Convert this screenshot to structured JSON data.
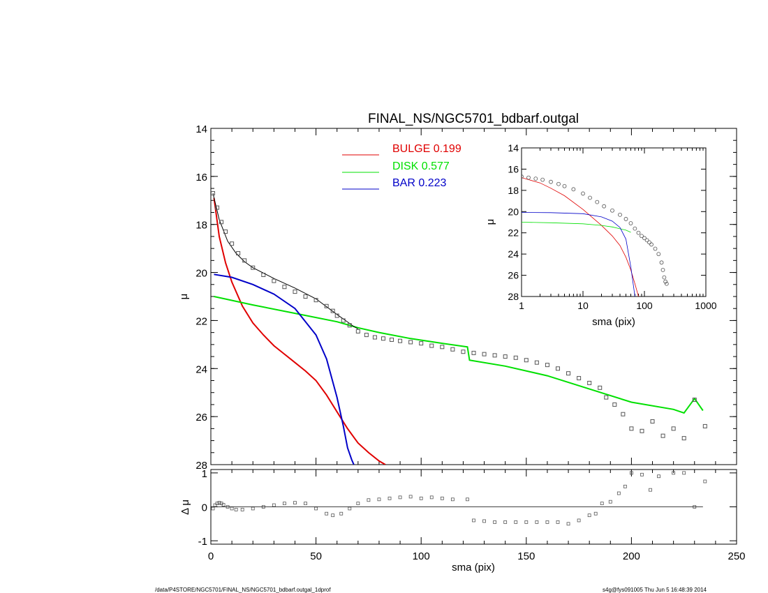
{
  "chart_data": [
    {
      "type": "scatter",
      "title": "FINAL_NS/NGC5701_bdbarf.outgal",
      "xlabel": "",
      "ylabel": "μ",
      "xlim": [
        0,
        250
      ],
      "ylim": [
        28,
        14
      ],
      "y_inverted": true,
      "yticks": [
        "14",
        "16",
        "18",
        "20",
        "22",
        "24",
        "26",
        "28"
      ],
      "legend": {
        "placement": "top-center",
        "entries": [
          {
            "name": "BULGE",
            "value": "0.199",
            "color": "#e00000"
          },
          {
            "name": "DISK",
            "value": "0.577",
            "color": "#00e000"
          },
          {
            "name": "BAR",
            "value": "0.223",
            "color": "#0000c8"
          }
        ]
      },
      "series": [
        {
          "name": "BULGE",
          "kind": "line",
          "color": "#e00000",
          "x": [
            1.5,
            4,
            7,
            10,
            15,
            20,
            25,
            30,
            35,
            40,
            45,
            50,
            55,
            60,
            65,
            70,
            75,
            80,
            83
          ],
          "y": [
            16.9,
            18.5,
            19.6,
            20.4,
            21.4,
            22.1,
            22.6,
            23.05,
            23.4,
            23.75,
            24.1,
            24.5,
            25.1,
            25.8,
            26.5,
            27.1,
            27.5,
            27.85,
            28.0
          ]
        },
        {
          "name": "DISK",
          "kind": "line",
          "color": "#00e000",
          "x": [
            1.5,
            20,
            40,
            60,
            70,
            80,
            95,
            110,
            122,
            123,
            140,
            160,
            180,
            200,
            220,
            225,
            230,
            234
          ],
          "y": [
            21.0,
            21.35,
            21.7,
            22.05,
            22.3,
            22.5,
            22.75,
            22.95,
            23.1,
            23.65,
            23.9,
            24.3,
            24.85,
            25.4,
            25.7,
            25.85,
            25.25,
            25.75
          ]
        },
        {
          "name": "BAR",
          "kind": "line",
          "color": "#0000c8",
          "x": [
            1.5,
            10,
            20,
            30,
            40,
            50,
            55,
            60,
            63,
            65,
            67,
            68
          ],
          "y": [
            20.08,
            20.2,
            20.5,
            20.9,
            21.5,
            22.6,
            23.6,
            25.2,
            26.4,
            27.3,
            27.8,
            28.0
          ]
        },
        {
          "name": "model-total",
          "kind": "line",
          "color": "#000000",
          "x": [
            1,
            4,
            8,
            12,
            16,
            20,
            30,
            40,
            50,
            60,
            64,
            68,
            70
          ],
          "y": [
            16.7,
            17.8,
            18.7,
            19.2,
            19.55,
            19.8,
            20.25,
            20.65,
            21.1,
            21.75,
            22.0,
            22.25,
            22.35
          ]
        },
        {
          "name": "data",
          "kind": "scatter",
          "color": "#000000",
          "x": [
            1,
            3,
            5,
            7,
            10,
            13,
            16,
            20,
            25,
            30,
            35,
            40,
            45,
            50,
            55,
            58,
            60,
            63,
            66,
            70,
            74,
            78,
            82,
            86,
            90,
            95,
            100,
            105,
            110,
            115,
            120,
            125,
            130,
            135,
            140,
            145,
            150,
            155,
            160,
            165,
            170,
            175,
            180,
            185,
            188,
            192,
            196,
            200,
            205,
            210,
            215,
            220,
            225,
            230,
            235
          ],
          "y": [
            16.7,
            17.3,
            17.9,
            18.3,
            18.8,
            19.2,
            19.5,
            19.8,
            20.1,
            20.35,
            20.6,
            20.8,
            21.0,
            21.15,
            21.4,
            21.6,
            21.8,
            22.0,
            22.2,
            22.45,
            22.6,
            22.7,
            22.75,
            22.8,
            22.85,
            22.9,
            22.95,
            23.05,
            23.1,
            23.2,
            23.3,
            23.35,
            23.4,
            23.45,
            23.5,
            23.55,
            23.65,
            23.75,
            23.85,
            24.0,
            24.2,
            24.4,
            24.6,
            24.8,
            25.2,
            25.5,
            25.9,
            26.5,
            26.6,
            26.2,
            26.8,
            26.5,
            26.9,
            25.3,
            26.4
          ]
        }
      ]
    },
    {
      "type": "scatter",
      "xlabel": "sma (pix)",
      "ylabel": "Δ μ",
      "xlim": [
        0,
        250
      ],
      "ylim": [
        -1.1,
        1.1
      ],
      "xticks": [
        "0",
        "50",
        "100",
        "150",
        "200",
        "250"
      ],
      "yticks": [
        "1",
        "0",
        "-1"
      ],
      "series": [
        {
          "name": "residual",
          "kind": "scatter",
          "color": "#000000",
          "x": [
            1,
            2,
            3,
            4,
            5,
            6,
            8,
            10,
            12,
            15,
            20,
            25,
            30,
            35,
            40,
            45,
            50,
            55,
            58,
            62,
            66,
            70,
            75,
            80,
            85,
            90,
            95,
            100,
            105,
            110,
            115,
            122,
            125,
            130,
            135,
            140,
            145,
            150,
            155,
            160,
            165,
            170,
            175,
            180,
            183,
            186,
            190,
            194,
            197,
            200,
            205,
            209,
            213,
            220,
            225,
            230,
            235
          ],
          "y": [
            -0.05,
            0.05,
            0.1,
            0.12,
            0.1,
            0.06,
            0.0,
            -0.05,
            -0.08,
            -0.08,
            -0.05,
            0.0,
            0.05,
            0.1,
            0.12,
            0.1,
            -0.05,
            -0.2,
            -0.25,
            -0.2,
            -0.05,
            0.1,
            0.2,
            0.22,
            0.25,
            0.28,
            0.3,
            0.25,
            0.28,
            0.25,
            0.22,
            0.22,
            -0.4,
            -0.42,
            -0.45,
            -0.45,
            -0.45,
            -0.45,
            -0.45,
            -0.45,
            -0.45,
            -0.5,
            -0.4,
            -0.25,
            -0.2,
            0.1,
            0.15,
            0.4,
            0.6,
            1.0,
            0.95,
            0.5,
            0.9,
            1.0,
            1.0,
            0.0,
            0.75
          ]
        },
        {
          "name": "zero-line",
          "kind": "line",
          "color": "#000000",
          "x": [
            0,
            234
          ],
          "y": [
            0,
            0
          ]
        }
      ]
    },
    {
      "type": "scatter",
      "inset": true,
      "xlabel": "sma (pix)",
      "ylabel": "μ",
      "xscale": "log",
      "xlim": [
        1,
        1000
      ],
      "ylim": [
        28,
        14
      ],
      "y_inverted": true,
      "xticks": [
        "1",
        "10",
        "100",
        "1000"
      ],
      "yticks": [
        "14",
        "16",
        "18",
        "20",
        "22",
        "24",
        "26",
        "28"
      ],
      "series": [
        {
          "name": "BULGE",
          "kind": "line",
          "color": "#e00000",
          "x": [
            1,
            2,
            3,
            5,
            10,
            20,
            30,
            40,
            50,
            60,
            70,
            80
          ],
          "y": [
            16.8,
            17.3,
            17.8,
            18.5,
            19.8,
            21.3,
            22.3,
            23.2,
            24.3,
            25.5,
            26.8,
            28.0
          ]
        },
        {
          "name": "DISK",
          "kind": "line",
          "color": "#00e000",
          "x": [
            1,
            3,
            10,
            20,
            30,
            50,
            60
          ],
          "y": [
            21.0,
            21.05,
            21.15,
            21.3,
            21.45,
            21.75,
            21.95
          ]
        },
        {
          "name": "BAR",
          "kind": "line",
          "color": "#0000c8",
          "x": [
            1,
            3,
            10,
            20,
            30,
            40,
            50,
            60,
            70
          ],
          "y": [
            20.08,
            20.1,
            20.2,
            20.5,
            20.9,
            21.5,
            22.6,
            25.2,
            28.0
          ]
        },
        {
          "name": "data",
          "kind": "scatter",
          "color": "#000000",
          "x": [
            1,
            1.3,
            1.7,
            2.2,
            3,
            4,
            5,
            7,
            10,
            13,
            17,
            22,
            30,
            40,
            50,
            60,
            70,
            80,
            90,
            100,
            110,
            120,
            130,
            150,
            170,
            190,
            200,
            210,
            220,
            230
          ],
          "y": [
            16.7,
            16.8,
            16.9,
            17.0,
            17.2,
            17.4,
            17.6,
            17.9,
            18.3,
            18.7,
            19.1,
            19.5,
            19.9,
            20.3,
            20.7,
            21.1,
            21.6,
            22.0,
            22.3,
            22.5,
            22.7,
            22.9,
            23.1,
            23.5,
            24.0,
            24.8,
            25.5,
            26.2,
            26.6,
            26.8
          ]
        }
      ]
    }
  ],
  "footer": {
    "left": "/data/P4STORE/NGC5701/FINAL_NS/NGC5701_bdbarf.outgal_1dprof",
    "right": "s4g@fys091005  Thu Jun  5 16:48:39 2014"
  }
}
